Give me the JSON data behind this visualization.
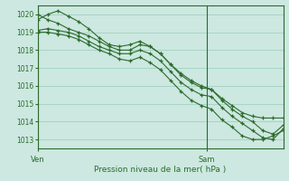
{
  "xlabel": "Pression niveau de la mer( hPa )",
  "ylim": [
    1012.5,
    1020.5
  ],
  "xlim": [
    0,
    48
  ],
  "yticks": [
    1013,
    1014,
    1015,
    1016,
    1017,
    1018,
    1019,
    1020
  ],
  "xtick_positions": [
    0,
    33
  ],
  "xtick_labels": [
    "Ven",
    "Sam"
  ],
  "vline_positions": [
    0,
    33
  ],
  "bg_color": "#cce8e0",
  "line_color": "#2d6a2d",
  "grid_color": "#99ccbb",
  "lines": [
    [
      0,
      1019.7,
      2,
      1020.0,
      4,
      1020.2,
      6,
      1019.9,
      8,
      1019.6,
      10,
      1019.2,
      12,
      1018.7,
      14,
      1018.3,
      16,
      1018.2,
      18,
      1018.3,
      20,
      1018.5,
      22,
      1018.2,
      24,
      1017.8,
      26,
      1017.2,
      28,
      1016.7,
      30,
      1016.3,
      32,
      1016.0,
      34,
      1015.8,
      36,
      1015.3,
      38,
      1014.9,
      40,
      1014.5,
      42,
      1014.3,
      44,
      1014.2,
      46,
      1014.2,
      48,
      1014.2
    ],
    [
      0,
      1020.0,
      2,
      1019.7,
      4,
      1019.5,
      6,
      1019.2,
      8,
      1019.0,
      10,
      1018.8,
      12,
      1018.5,
      14,
      1018.2,
      16,
      1018.0,
      18,
      1018.0,
      20,
      1018.3,
      22,
      1018.2,
      24,
      1017.8,
      26,
      1017.2,
      28,
      1016.6,
      30,
      1016.2,
      32,
      1015.9,
      34,
      1015.8,
      36,
      1015.2,
      38,
      1014.7,
      40,
      1014.3,
      42,
      1014.0,
      44,
      1013.5,
      46,
      1013.3,
      48,
      1013.8
    ],
    [
      0,
      1019.1,
      2,
      1019.2,
      4,
      1019.1,
      6,
      1019.0,
      8,
      1018.8,
      10,
      1018.5,
      12,
      1018.2,
      14,
      1018.0,
      16,
      1017.8,
      18,
      1017.8,
      20,
      1018.0,
      22,
      1017.8,
      24,
      1017.4,
      26,
      1016.8,
      28,
      1016.2,
      30,
      1015.8,
      32,
      1015.5,
      34,
      1015.4,
      36,
      1014.8,
      38,
      1014.3,
      40,
      1013.9,
      42,
      1013.5,
      44,
      1013.1,
      46,
      1013.0,
      48,
      1013.6
    ],
    [
      0,
      1019.0,
      2,
      1019.0,
      4,
      1018.9,
      6,
      1018.8,
      8,
      1018.6,
      10,
      1018.3,
      12,
      1018.0,
      14,
      1017.8,
      16,
      1017.5,
      18,
      1017.4,
      20,
      1017.6,
      22,
      1017.3,
      24,
      1016.9,
      26,
      1016.3,
      28,
      1015.7,
      30,
      1015.2,
      32,
      1014.9,
      34,
      1014.7,
      36,
      1014.1,
      38,
      1013.7,
      40,
      1013.2,
      42,
      1013.0,
      44,
      1013.0,
      46,
      1013.2,
      48,
      1013.5
    ]
  ]
}
